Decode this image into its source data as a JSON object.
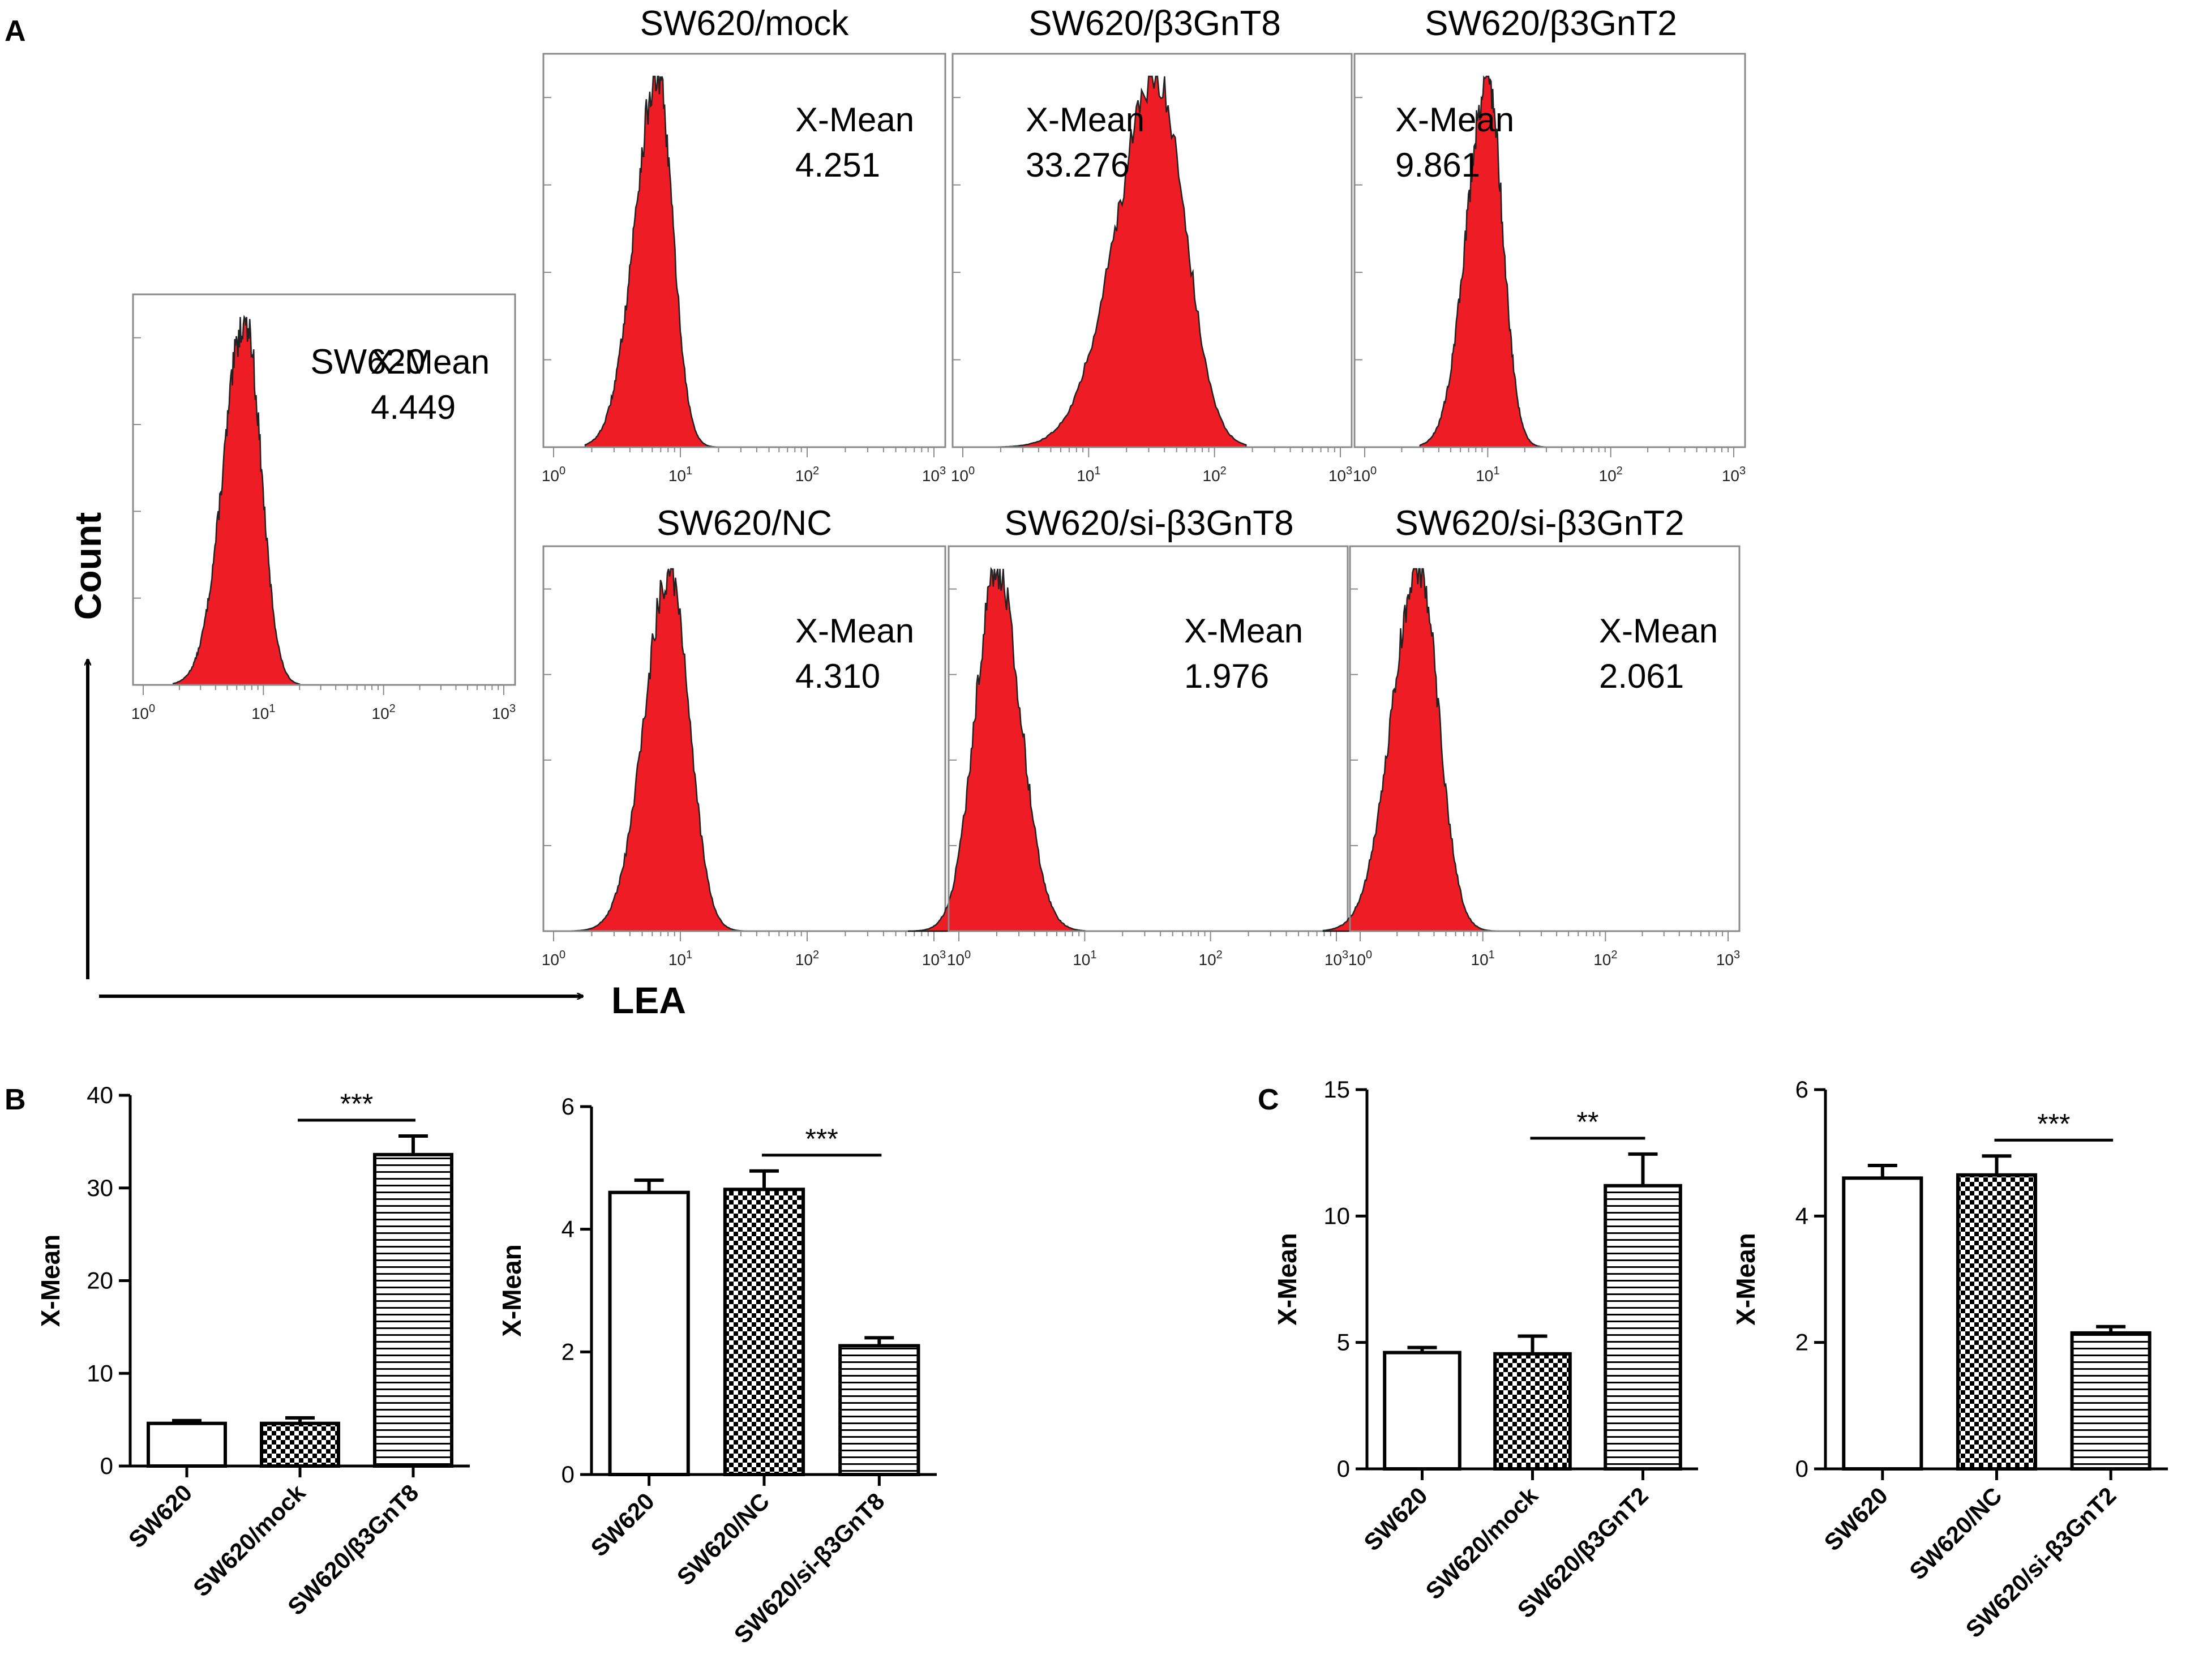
{
  "panel_labels": {
    "a": "A",
    "b": "B",
    "c": "C"
  },
  "axes_labels": {
    "count": "Count",
    "lea": "LEA"
  },
  "colors": {
    "fill": "#ee1c24",
    "outline": "#222222",
    "frame": "#8a8a8a",
    "axis": "#000000",
    "text": "#000000"
  },
  "chart_data": [
    {
      "type": "histogram",
      "title": "SW620",
      "stat_label": "X-Mean",
      "stat_value": "4.449",
      "x_scale": "log",
      "xlim": [
        1,
        1000
      ],
      "x_ticks": [
        {
          "base": "10",
          "exp": "0",
          "v": 1
        },
        {
          "base": "10",
          "exp": "1",
          "v": 10
        },
        {
          "base": "10",
          "exp": "2",
          "v": 100
        },
        {
          "base": "10",
          "exp": "3",
          "v": 1000
        }
      ],
      "peak_log10": 0.85,
      "spread_left": 0.18,
      "spread_right": 0.13,
      "support_log10": [
        0.25,
        1.3
      ]
    },
    {
      "type": "histogram",
      "title": "SW620/mock",
      "stat_label": "X-Mean",
      "stat_value": "4.251",
      "x_scale": "log",
      "xlim": [
        1,
        1000
      ],
      "x_ticks": [
        {
          "base": "10",
          "exp": "0",
          "v": 1
        },
        {
          "base": "10",
          "exp": "1",
          "v": 10
        },
        {
          "base": "10",
          "exp": "2",
          "v": 100
        },
        {
          "base": "10",
          "exp": "3",
          "v": 1000
        }
      ],
      "peak_log10": 0.82,
      "spread_left": 0.18,
      "spread_right": 0.12,
      "support_log10": [
        0.25,
        1.35
      ]
    },
    {
      "type": "histogram",
      "title": "SW620/β3GnT8",
      "stat_label": "X-Mean",
      "stat_value": "33.276",
      "x_scale": "log",
      "xlim": [
        1,
        1000
      ],
      "x_ticks": [
        {
          "base": "10",
          "exp": "0",
          "v": 1
        },
        {
          "base": "10",
          "exp": "1",
          "v": 10
        },
        {
          "base": "10",
          "exp": "2",
          "v": 100
        },
        {
          "base": "10",
          "exp": "3",
          "v": 1000
        }
      ],
      "peak_log10": 1.55,
      "spread_left": 0.33,
      "spread_right": 0.22,
      "support_log10": [
        0.0,
        2.25
      ]
    },
    {
      "type": "histogram",
      "title": "SW620/β3GnT2",
      "stat_label": "X-Mean",
      "stat_value": "9.861",
      "x_scale": "log",
      "xlim": [
        1,
        1000
      ],
      "x_ticks": [
        {
          "base": "10",
          "exp": "0",
          "v": 1
        },
        {
          "base": "10",
          "exp": "1",
          "v": 10
        },
        {
          "base": "10",
          "exp": "2",
          "v": 100
        },
        {
          "base": "10",
          "exp": "3",
          "v": 1000
        }
      ],
      "peak_log10": 1.0,
      "spread_left": 0.17,
      "spread_right": 0.12,
      "support_log10": [
        0.45,
        1.5
      ]
    },
    {
      "type": "histogram",
      "title": "SW620/NC",
      "stat_label": "X-Mean",
      "stat_value": "4.310",
      "x_scale": "log",
      "xlim": [
        1,
        1000
      ],
      "x_ticks": [
        {
          "base": "10",
          "exp": "0",
          "v": 1
        },
        {
          "base": "10",
          "exp": "1",
          "v": 10
        },
        {
          "base": "10",
          "exp": "2",
          "v": 100
        },
        {
          "base": "10",
          "exp": "3",
          "v": 1000
        }
      ],
      "peak_log10": 0.92,
      "spread_left": 0.2,
      "spread_right": 0.15,
      "support_log10": [
        0.1,
        1.55
      ]
    },
    {
      "type": "histogram",
      "title": "SW620/si-β3GnT8",
      "stat_label": "X-Mean",
      "stat_value": "1.976",
      "x_scale": "log",
      "xlim": [
        1,
        1000
      ],
      "x_ticks": [
        {
          "base": "10",
          "exp": "0",
          "v": 1
        },
        {
          "base": "10",
          "exp": "1",
          "v": 10
        },
        {
          "base": "10",
          "exp": "2",
          "v": 100
        },
        {
          "base": "10",
          "exp": "3",
          "v": 1000
        }
      ],
      "peak_log10": 0.3,
      "spread_left": 0.17,
      "spread_right": 0.19,
      "support_log10": [
        -0.4,
        1.0
      ]
    },
    {
      "type": "histogram",
      "title": "SW620/si-β3GnT2",
      "stat_label": "X-Mean",
      "stat_value": "2.061",
      "x_scale": "log",
      "xlim": [
        1,
        1000
      ],
      "x_ticks": [
        {
          "base": "10",
          "exp": "0",
          "v": 1
        },
        {
          "base": "10",
          "exp": "1",
          "v": 10
        },
        {
          "base": "10",
          "exp": "2",
          "v": 100
        },
        {
          "base": "10",
          "exp": "3",
          "v": 1000
        }
      ],
      "peak_log10": 0.48,
      "spread_left": 0.22,
      "spread_right": 0.16,
      "support_log10": [
        -0.3,
        1.1
      ]
    },
    {
      "type": "bar",
      "ylabel": "X-Mean",
      "ylim": [
        0,
        40
      ],
      "yticks": [
        0,
        10,
        20,
        30,
        40
      ],
      "categories": [
        "SW620",
        "SW620/mock",
        "SW620/β3GnT8"
      ],
      "patterns": [
        "none",
        "check",
        "hline"
      ],
      "values": [
        4.6,
        4.6,
        33.6
      ],
      "errors": [
        0.3,
        0.6,
        2.0
      ],
      "significance": {
        "label": "***",
        "from": 1,
        "to": 2
      }
    },
    {
      "type": "bar",
      "ylabel": "X-Mean",
      "ylim": [
        0,
        6
      ],
      "yticks": [
        0,
        2,
        4,
        6
      ],
      "categories": [
        "SW620",
        "SW620/NC",
        "SW620/si-β3GnT8"
      ],
      "patterns": [
        "none",
        "check",
        "hline"
      ],
      "values": [
        4.6,
        4.65,
        2.1
      ],
      "errors": [
        0.2,
        0.3,
        0.13
      ],
      "significance": {
        "label": "***",
        "from": 1,
        "to": 2
      }
    },
    {
      "type": "bar",
      "ylabel": "X-Mean",
      "ylim": [
        0,
        15
      ],
      "yticks": [
        0,
        5,
        10,
        15
      ],
      "categories": [
        "SW620",
        "SW620/mock",
        "SW620/β3GnT2"
      ],
      "patterns": [
        "none",
        "check",
        "hline"
      ],
      "values": [
        4.6,
        4.55,
        11.2
      ],
      "errors": [
        0.2,
        0.7,
        1.25
      ],
      "significance": {
        "label": "**",
        "from": 1,
        "to": 2
      }
    },
    {
      "type": "bar",
      "ylabel": "X-Mean",
      "ylim": [
        0,
        6
      ],
      "yticks": [
        0,
        2,
        4,
        6
      ],
      "categories": [
        "SW620",
        "SW620/NC",
        "SW620/si-β3GnT2"
      ],
      "patterns": [
        "none",
        "check",
        "hline"
      ],
      "values": [
        4.6,
        4.65,
        2.15
      ],
      "errors": [
        0.2,
        0.3,
        0.1
      ],
      "significance": {
        "label": "***",
        "from": 1,
        "to": 2
      }
    }
  ]
}
